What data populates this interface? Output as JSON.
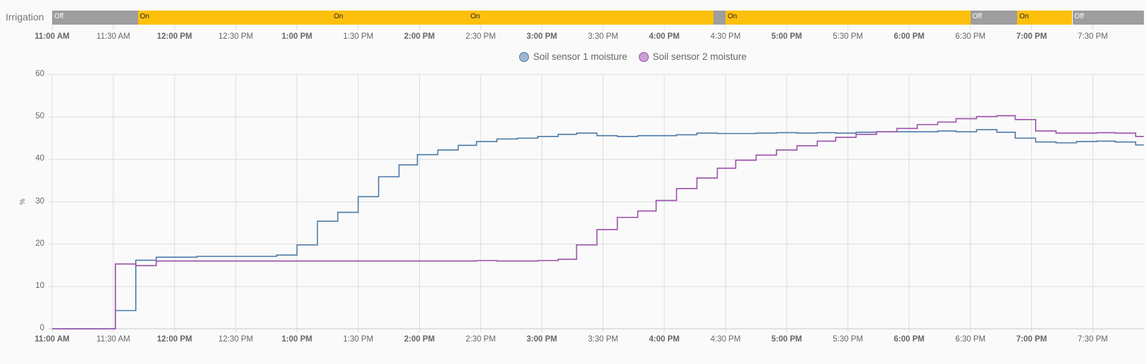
{
  "timeline": {
    "label": "Irrigation",
    "colors": {
      "On": "#fdc00d",
      "Off": "#9e9e9e"
    },
    "segments": [
      {
        "start": "11:00",
        "end": "11:42",
        "state": "Off",
        "label": "Off"
      },
      {
        "start": "11:42",
        "end": "13:17",
        "state": "On",
        "label": "On"
      },
      {
        "start": "13:17",
        "end": "14:24",
        "state": "On",
        "label": "On"
      },
      {
        "start": "14:24",
        "end": "16:24",
        "state": "On",
        "label": "On"
      },
      {
        "start": "16:24",
        "end": "16:30",
        "state": "Off",
        "label": ""
      },
      {
        "start": "16:30",
        "end": "18:30",
        "state": "On",
        "label": "On"
      },
      {
        "start": "18:30",
        "end": "18:53",
        "state": "Off",
        "label": "Off"
      },
      {
        "start": "18:53",
        "end": "19:20",
        "state": "On",
        "label": "On"
      },
      {
        "start": "19:20",
        "end": "19:55",
        "state": "Off",
        "label": "Off"
      }
    ]
  },
  "x_ticks": [
    {
      "t": "11:00",
      "label": "11:00 AM",
      "bold": true
    },
    {
      "t": "11:30",
      "label": "11:30 AM",
      "bold": false
    },
    {
      "t": "12:00",
      "label": "12:00 PM",
      "bold": true
    },
    {
      "t": "12:30",
      "label": "12:30 PM",
      "bold": false
    },
    {
      "t": "13:00",
      "label": "1:00 PM",
      "bold": true
    },
    {
      "t": "13:30",
      "label": "1:30 PM",
      "bold": false
    },
    {
      "t": "14:00",
      "label": "2:00 PM",
      "bold": true
    },
    {
      "t": "14:30",
      "label": "2:30 PM",
      "bold": false
    },
    {
      "t": "15:00",
      "label": "3:00 PM",
      "bold": true
    },
    {
      "t": "15:30",
      "label": "3:30 PM",
      "bold": false
    },
    {
      "t": "16:00",
      "label": "4:00 PM",
      "bold": true
    },
    {
      "t": "16:30",
      "label": "4:30 PM",
      "bold": false
    },
    {
      "t": "17:00",
      "label": "5:00 PM",
      "bold": true
    },
    {
      "t": "17:30",
      "label": "5:30 PM",
      "bold": false
    },
    {
      "t": "18:00",
      "label": "6:00 PM",
      "bold": true
    },
    {
      "t": "18:30",
      "label": "6:30 PM",
      "bold": false
    },
    {
      "t": "19:00",
      "label": "7:00 PM",
      "bold": true
    },
    {
      "t": "19:30",
      "label": "7:30 PM",
      "bold": false
    }
  ],
  "chart_data": {
    "type": "line",
    "step": true,
    "title": "",
    "xlabel": "",
    "ylabel": "%",
    "xlim": [
      "11:00",
      "19:55"
    ],
    "ylim": [
      0,
      60
    ],
    "y_ticks": [
      0,
      10,
      20,
      30,
      40,
      50,
      60
    ],
    "grid": true,
    "legend": "top-center",
    "series": [
      {
        "name": "Soil sensor 1 moisture",
        "color": "#4b79a6",
        "legend_fill": "#9fb7d0",
        "points": [
          [
            "11:00",
            0
          ],
          [
            "11:31",
            4.3
          ],
          [
            "11:41",
            16.2
          ],
          [
            "11:51",
            16.9
          ],
          [
            "12:11",
            17.1
          ],
          [
            "12:50",
            17.4
          ],
          [
            "13:00",
            19.8
          ],
          [
            "13:10",
            25.4
          ],
          [
            "13:20",
            27.5
          ],
          [
            "13:30",
            31.2
          ],
          [
            "13:40",
            35.9
          ],
          [
            "13:50",
            38.7
          ],
          [
            "13:59",
            41.1
          ],
          [
            "14:09",
            42.2
          ],
          [
            "14:19",
            43.3
          ],
          [
            "14:28",
            44.2
          ],
          [
            "14:38",
            44.8
          ],
          [
            "14:48",
            45.0
          ],
          [
            "14:58",
            45.4
          ],
          [
            "15:08",
            45.9
          ],
          [
            "15:17",
            46.2
          ],
          [
            "15:27",
            45.6
          ],
          [
            "15:37",
            45.4
          ],
          [
            "15:47",
            45.6
          ],
          [
            "16:06",
            45.8
          ],
          [
            "16:16",
            46.2
          ],
          [
            "16:26",
            46.1
          ],
          [
            "16:45",
            46.2
          ],
          [
            "16:55",
            46.3
          ],
          [
            "17:05",
            46.2
          ],
          [
            "17:15",
            46.3
          ],
          [
            "17:24",
            46.2
          ],
          [
            "17:34",
            46.4
          ],
          [
            "17:44",
            46.5
          ],
          [
            "18:14",
            46.7
          ],
          [
            "18:23",
            46.5
          ],
          [
            "18:33",
            47.0
          ],
          [
            "18:43",
            46.4
          ],
          [
            "18:52",
            45.0
          ],
          [
            "19:02",
            44.1
          ],
          [
            "19:12",
            43.9
          ],
          [
            "19:22",
            44.2
          ],
          [
            "19:32",
            44.3
          ],
          [
            "19:41",
            44.1
          ],
          [
            "19:51",
            43.4
          ],
          [
            "19:55",
            43.4
          ]
        ]
      },
      {
        "name": "Soil sensor 2 moisture",
        "color": "#9b4fa9",
        "legend_fill": "#c9a2d2",
        "points": [
          [
            "11:00",
            0
          ],
          [
            "11:31",
            15.3
          ],
          [
            "11:41",
            14.9
          ],
          [
            "11:51",
            16.0
          ],
          [
            "14:28",
            16.1
          ],
          [
            "14:38",
            16.0
          ],
          [
            "14:58",
            16.1
          ],
          [
            "15:08",
            16.4
          ],
          [
            "15:17",
            19.8
          ],
          [
            "15:27",
            23.4
          ],
          [
            "15:37",
            26.3
          ],
          [
            "15:47",
            27.8
          ],
          [
            "15:56",
            30.3
          ],
          [
            "16:06",
            33.1
          ],
          [
            "16:16",
            35.6
          ],
          [
            "16:26",
            37.9
          ],
          [
            "16:35",
            39.8
          ],
          [
            "16:45",
            41.0
          ],
          [
            "16:55",
            42.2
          ],
          [
            "17:05",
            43.2
          ],
          [
            "17:15",
            44.3
          ],
          [
            "17:24",
            45.2
          ],
          [
            "17:34",
            45.9
          ],
          [
            "17:44",
            46.5
          ],
          [
            "17:54",
            47.3
          ],
          [
            "18:04",
            48.2
          ],
          [
            "18:14",
            48.8
          ],
          [
            "18:23",
            49.6
          ],
          [
            "18:33",
            50.1
          ],
          [
            "18:43",
            50.3
          ],
          [
            "18:52",
            49.4
          ],
          [
            "19:02",
            46.7
          ],
          [
            "19:12",
            46.2
          ],
          [
            "19:32",
            46.3
          ],
          [
            "19:41",
            46.2
          ],
          [
            "19:51",
            45.4
          ],
          [
            "19:55",
            45.4
          ]
        ]
      }
    ]
  }
}
